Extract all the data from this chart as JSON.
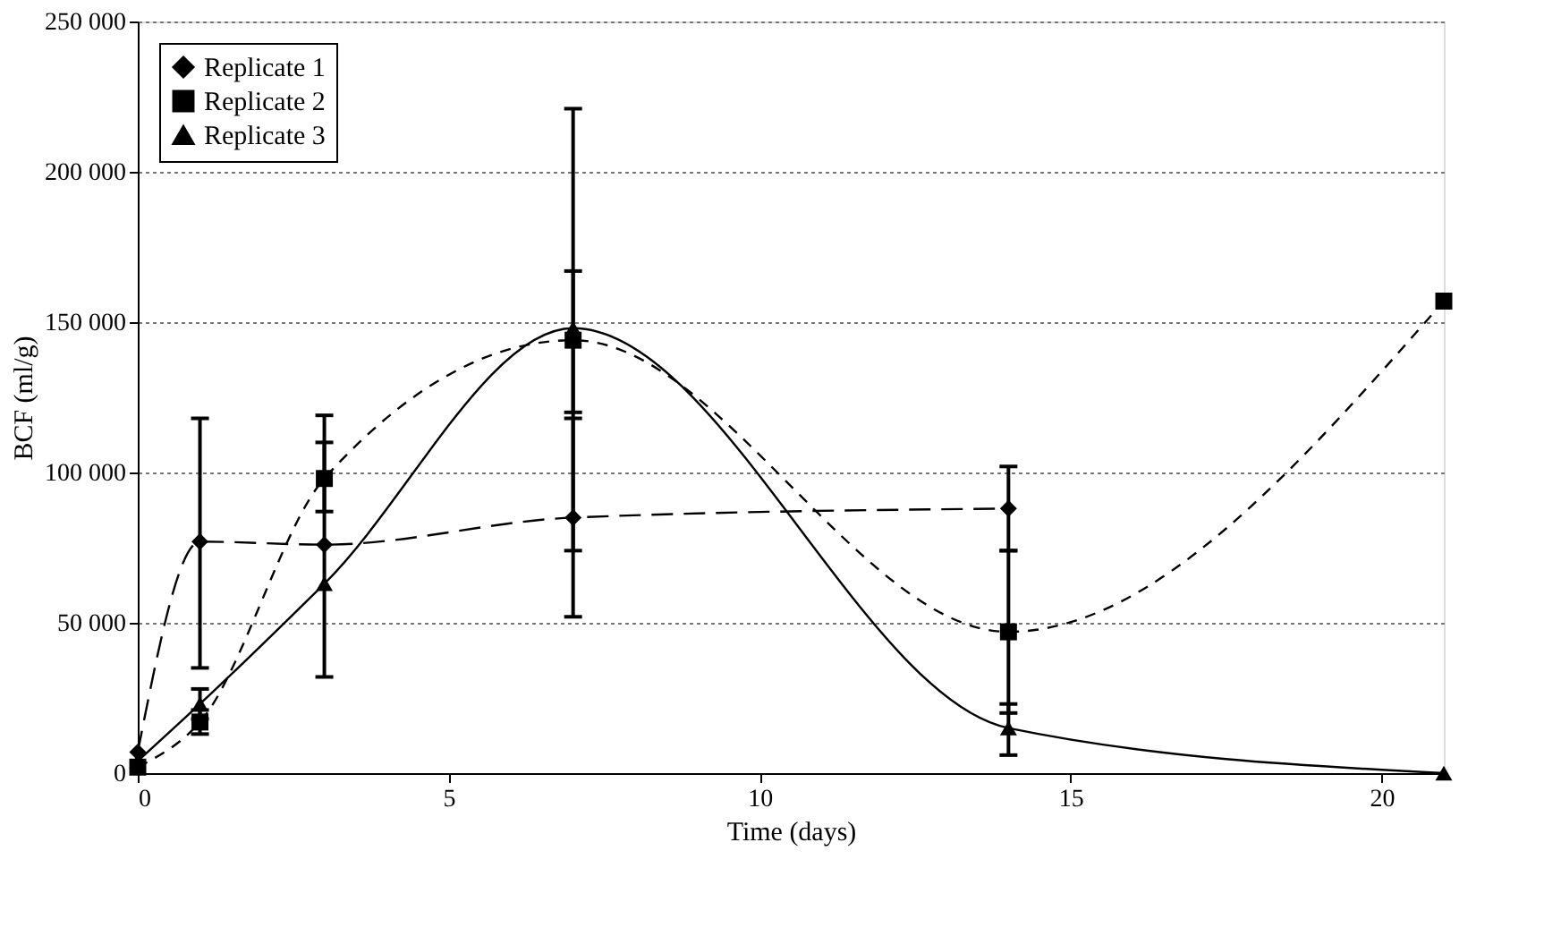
{
  "chart_data": {
    "type": "line",
    "xlabel": "Time (days)",
    "ylabel": "BCF (ml/g)",
    "x": [
      0,
      1,
      3,
      7,
      14,
      21
    ],
    "series": [
      {
        "name": "Replicate 1",
        "color": "#000000",
        "marker": "diamond",
        "line_style": "dashed",
        "values": [
          7000,
          77000,
          76000,
          85000,
          88000,
          null
        ],
        "errors": [
          null,
          [
            35000,
            118000
          ],
          [
            32000,
            119000
          ],
          [
            52000,
            118000
          ],
          [
            74000,
            102000
          ],
          null
        ]
      },
      {
        "name": "Replicate 2",
        "color": "#000000",
        "marker": "square",
        "line_style": "dotted",
        "values": [
          2000,
          17000,
          98000,
          144000,
          47000,
          157000
        ],
        "errors": [
          null,
          [
            13000,
            21000
          ],
          [
            87000,
            110000
          ],
          [
            120000,
            167000
          ],
          [
            20000,
            74000
          ],
          null
        ]
      },
      {
        "name": "Replicate 3",
        "color": "#000000",
        "marker": "triangle",
        "line_style": "solid",
        "values": [
          4000,
          23000,
          63000,
          148000,
          15000,
          0
        ],
        "errors": [
          null,
          [
            18000,
            28000
          ],
          null,
          [
            74000,
            221000
          ],
          [
            6000,
            23000
          ],
          null
        ]
      }
    ],
    "xlim": [
      0,
      21
    ],
    "xticks": [
      0,
      5,
      10,
      15,
      20
    ],
    "ylim": [
      0,
      250000
    ],
    "yticks": [
      {
        "value": 0,
        "label": "0"
      },
      {
        "value": 50000,
        "label": "50 000"
      },
      {
        "value": 100000,
        "label": "100 000"
      },
      {
        "value": 150000,
        "label": "150 000"
      },
      {
        "value": 200000,
        "label": "200 000"
      },
      {
        "value": 250000,
        "label": "250 000"
      }
    ],
    "grid": "y",
    "legend": "top left"
  }
}
